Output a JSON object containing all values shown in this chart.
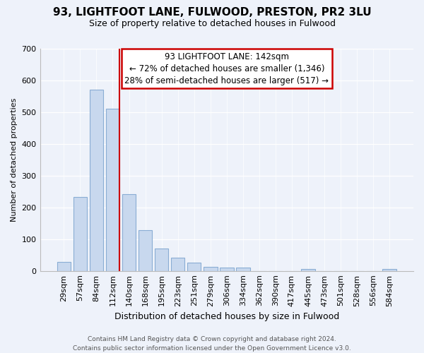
{
  "title": "93, LIGHTFOOT LANE, FULWOOD, PRESTON, PR2 3LU",
  "subtitle": "Size of property relative to detached houses in Fulwood",
  "xlabel": "Distribution of detached houses by size in Fulwood",
  "ylabel": "Number of detached properties",
  "bar_labels": [
    "29sqm",
    "57sqm",
    "84sqm",
    "112sqm",
    "140sqm",
    "168sqm",
    "195sqm",
    "223sqm",
    "251sqm",
    "279sqm",
    "306sqm",
    "334sqm",
    "362sqm",
    "390sqm",
    "417sqm",
    "445sqm",
    "473sqm",
    "501sqm",
    "528sqm",
    "556sqm",
    "584sqm"
  ],
  "bar_values": [
    28,
    232,
    570,
    510,
    242,
    128,
    70,
    42,
    27,
    13,
    10,
    10,
    0,
    0,
    0,
    5,
    0,
    0,
    0,
    0,
    5
  ],
  "bar_color": "#c8d8ee",
  "bar_edge_color": "#8aadd4",
  "vline_color": "#cc0000",
  "annotation_title": "93 LIGHTFOOT LANE: 142sqm",
  "annotation_line1": "← 72% of detached houses are smaller (1,346)",
  "annotation_line2": "28% of semi-detached houses are larger (517) →",
  "annotation_box_facecolor": "#ffffff",
  "annotation_box_edgecolor": "#cc0000",
  "ylim": [
    0,
    700
  ],
  "yticks": [
    0,
    100,
    200,
    300,
    400,
    500,
    600,
    700
  ],
  "footer_line1": "Contains HM Land Registry data © Crown copyright and database right 2024.",
  "footer_line2": "Contains public sector information licensed under the Open Government Licence v3.0.",
  "background_color": "#eef2fa",
  "grid_color": "#ffffff",
  "title_fontsize": 11,
  "subtitle_fontsize": 9,
  "xlabel_fontsize": 9,
  "ylabel_fontsize": 8,
  "tick_fontsize": 8,
  "annotation_fontsize": 8.5,
  "footer_fontsize": 6.5
}
